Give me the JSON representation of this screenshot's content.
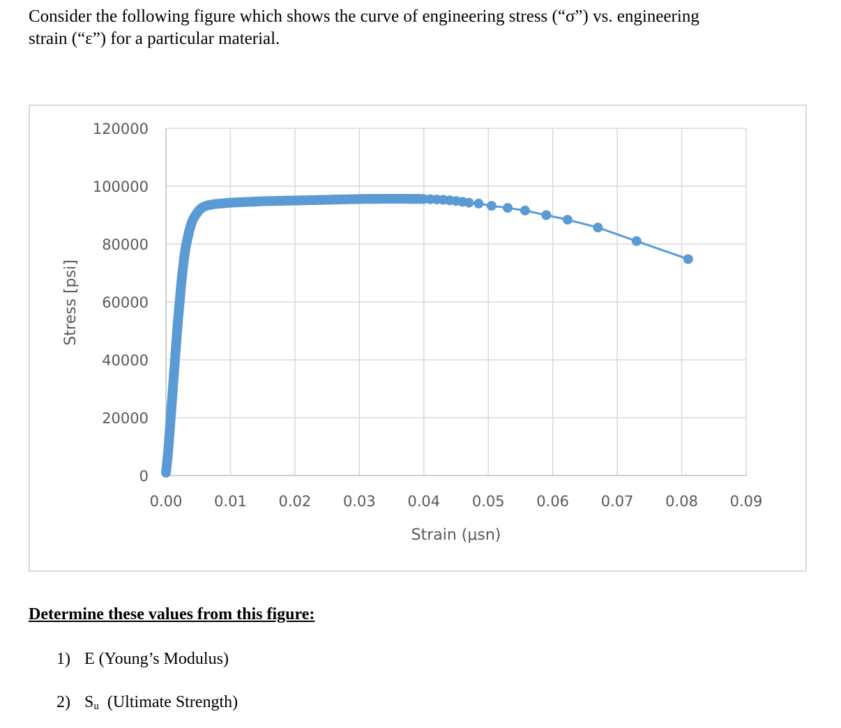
{
  "intro": {
    "line1": "Consider the following figure which shows the curve of engineering stress (“σ”) vs. engineering",
    "line2": "strain (“ε”) for a particular material."
  },
  "chart_data": {
    "type": "line",
    "title": "",
    "xlabel": "Strain (μsn)",
    "ylabel": "Stress [psi]",
    "xlim": [
      0,
      0.09
    ],
    "ylim": [
      0,
      120000
    ],
    "x_ticks": [
      "0.00",
      "0.01",
      "0.02",
      "0.03",
      "0.04",
      "0.05",
      "0.06",
      "0.07",
      "0.08",
      "0.09"
    ],
    "y_ticks": [
      "0",
      "20000",
      "40000",
      "60000",
      "80000",
      "100000",
      "120000"
    ],
    "grid": true,
    "legend": "none",
    "color": "#5b9bd5",
    "series": [
      {
        "x": [
          0,
          0.0002,
          0.0004,
          0.0006,
          0.0008,
          0.001,
          0.0012,
          0.0014,
          0.0016,
          0.0018,
          0.002,
          0.0022,
          0.0024,
          0.0026,
          0.0028,
          0.003,
          0.0032,
          0.0034,
          0.0036,
          0.0038,
          0.004,
          0.0043,
          0.0046,
          0.0049,
          0.0052,
          0.0055,
          0.0058,
          0.0061,
          0.0064,
          0.0067,
          0.007,
          0.0075,
          0.008,
          0.009,
          0.01,
          0.011,
          0.012,
          0.013,
          0.014,
          0.015,
          0.016,
          0.017,
          0.018,
          0.019,
          0.02,
          0.021,
          0.022,
          0.023,
          0.024,
          0.025,
          0.026,
          0.027,
          0.028,
          0.029,
          0.03,
          0.031,
          0.032,
          0.033,
          0.034,
          0.035,
          0.036,
          0.037,
          0.038,
          0.039,
          0.04,
          0.041,
          0.042,
          0.043,
          0.044,
          0.045,
          0.046,
          0.047,
          0.0485,
          0.0505,
          0.053,
          0.0557,
          0.059,
          0.0623,
          0.067,
          0.073,
          0.081
        ],
        "y": [
          1000,
          5000,
          10000,
          16000,
          22000,
          28000,
          34000,
          40000,
          46000,
          52000,
          57000,
          62000,
          67000,
          71000,
          75000,
          78000,
          80500,
          82500,
          84500,
          86000,
          87500,
          89000,
          90000,
          91000,
          91800,
          92400,
          92800,
          93100,
          93300,
          93500,
          93600,
          93800,
          93900,
          94100,
          94300,
          94400,
          94500,
          94600,
          94700,
          94800,
          94850,
          94900,
          94950,
          95000,
          95050,
          95100,
          95150,
          95200,
          95250,
          95300,
          95350,
          95400,
          95450,
          95500,
          95550,
          95600,
          95600,
          95600,
          95650,
          95650,
          95650,
          95650,
          95600,
          95600,
          95550,
          95500,
          95400,
          95300,
          95100,
          94900,
          94600,
          94300,
          94000,
          93200,
          92500,
          91600,
          90000,
          88400,
          85700,
          81000,
          74800
        ]
      }
    ]
  },
  "task": {
    "heading": "Determine these values from this figure:",
    "item1_num": "1)",
    "item1_text": "E (Young’s Modulus)",
    "item2_num": "2)",
    "item2_s": "S",
    "item2_sub": "u",
    "item2_text": "(Ultimate Strength)"
  }
}
